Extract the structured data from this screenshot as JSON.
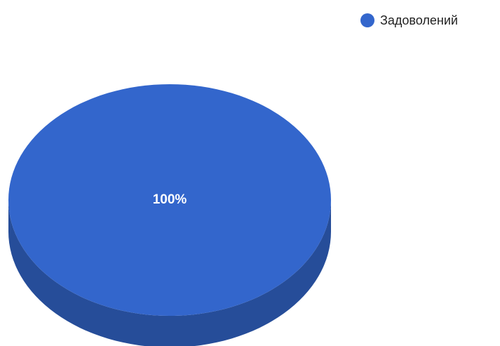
{
  "chart_data": {
    "type": "pie",
    "style": "3d",
    "categories": [
      "Задоволений"
    ],
    "values": [
      100
    ],
    "slice_labels": [
      "100%"
    ],
    "legend": {
      "position": "top-right",
      "entries": [
        "Задоволений"
      ]
    },
    "colors": {
      "slice_top": "#3366cc",
      "slice_side": "#264d99",
      "label_text": "#ffffff"
    }
  }
}
